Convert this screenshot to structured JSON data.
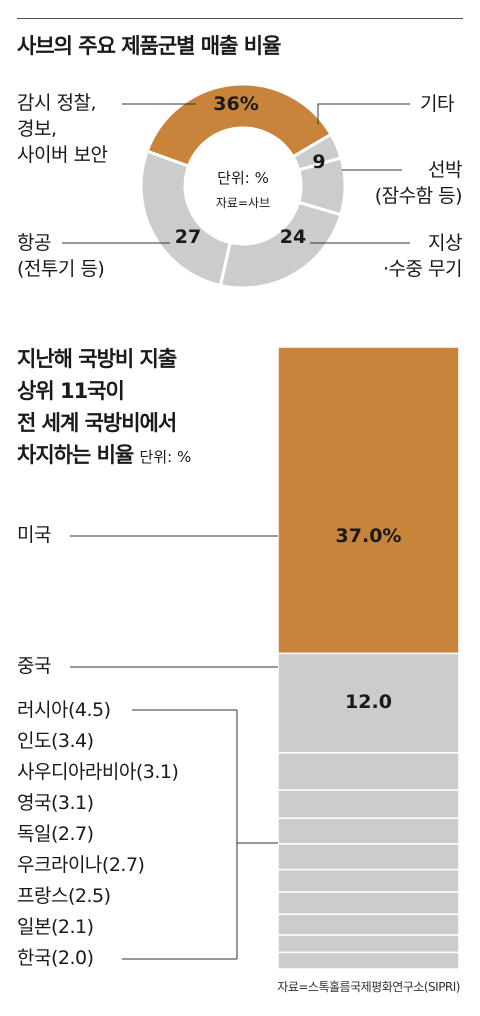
{
  "chart_data": [
    {
      "type": "pie",
      "title": "사브의 주요 제품군별 매출 비율",
      "center_lines": [
        "단위: %",
        "자료=사브"
      ],
      "slices": [
        {
          "label_lines": [
            "감시 정찰,",
            "경보,",
            "사이버 보안"
          ],
          "value": 36,
          "value_text": "36%",
          "color": "#c8843b"
        },
        {
          "label_lines": [
            "기타"
          ],
          "value": 4,
          "value_text": "",
          "color": "#cccccc"
        },
        {
          "label_lines": [
            "선박",
            "(잠수함 등)"
          ],
          "value": 9,
          "value_text": "9",
          "color": "#cccccc"
        },
        {
          "label_lines": [
            "지상",
            "·수중 무기"
          ],
          "value": 24,
          "value_text": "24",
          "color": "#cccccc"
        },
        {
          "label_lines": [
            "항공",
            "(전투기 등)"
          ],
          "value": 27,
          "value_text": "27",
          "color": "#cccccc"
        }
      ]
    },
    {
      "type": "bar",
      "title_lines": [
        "지난해 국방비 지출",
        "상위 11국이",
        "전 세계 국방비에서",
        "차지하는 비율"
      ],
      "unit": "단위: %",
      "segments": [
        {
          "country": "미국",
          "value": 37.0,
          "label": "미국",
          "value_text": "37.0%",
          "color": "#c8843b"
        },
        {
          "country": "중국",
          "value": 12.0,
          "label": "중국",
          "value_text": "12.0",
          "color": "#cccccc"
        },
        {
          "country": "러시아",
          "value": 4.5,
          "label": "러시아(4.5)",
          "color": "#cccccc"
        },
        {
          "country": "인도",
          "value": 3.4,
          "label": "인도(3.4)",
          "color": "#cccccc"
        },
        {
          "country": "사우디아라비아",
          "value": 3.1,
          "label": "사우디아라비아(3.1)",
          "color": "#cccccc"
        },
        {
          "country": "영국",
          "value": 3.1,
          "label": "영국(3.1)",
          "color": "#cccccc"
        },
        {
          "country": "독일",
          "value": 2.7,
          "label": "독일(2.7)",
          "color": "#cccccc"
        },
        {
          "country": "우크라이나",
          "value": 2.7,
          "label": "우크라이나(2.7)",
          "color": "#cccccc"
        },
        {
          "country": "프랑스",
          "value": 2.5,
          "label": "프랑스(2.5)",
          "color": "#cccccc"
        },
        {
          "country": "일본",
          "value": 2.1,
          "label": "일본(2.1)",
          "color": "#cccccc"
        },
        {
          "country": "한국",
          "value": 2.0,
          "label": "한국(2.0)",
          "color": "#cccccc"
        }
      ],
      "source": "자료=스톡홀름국제평화연구소(SIPRI)"
    }
  ]
}
